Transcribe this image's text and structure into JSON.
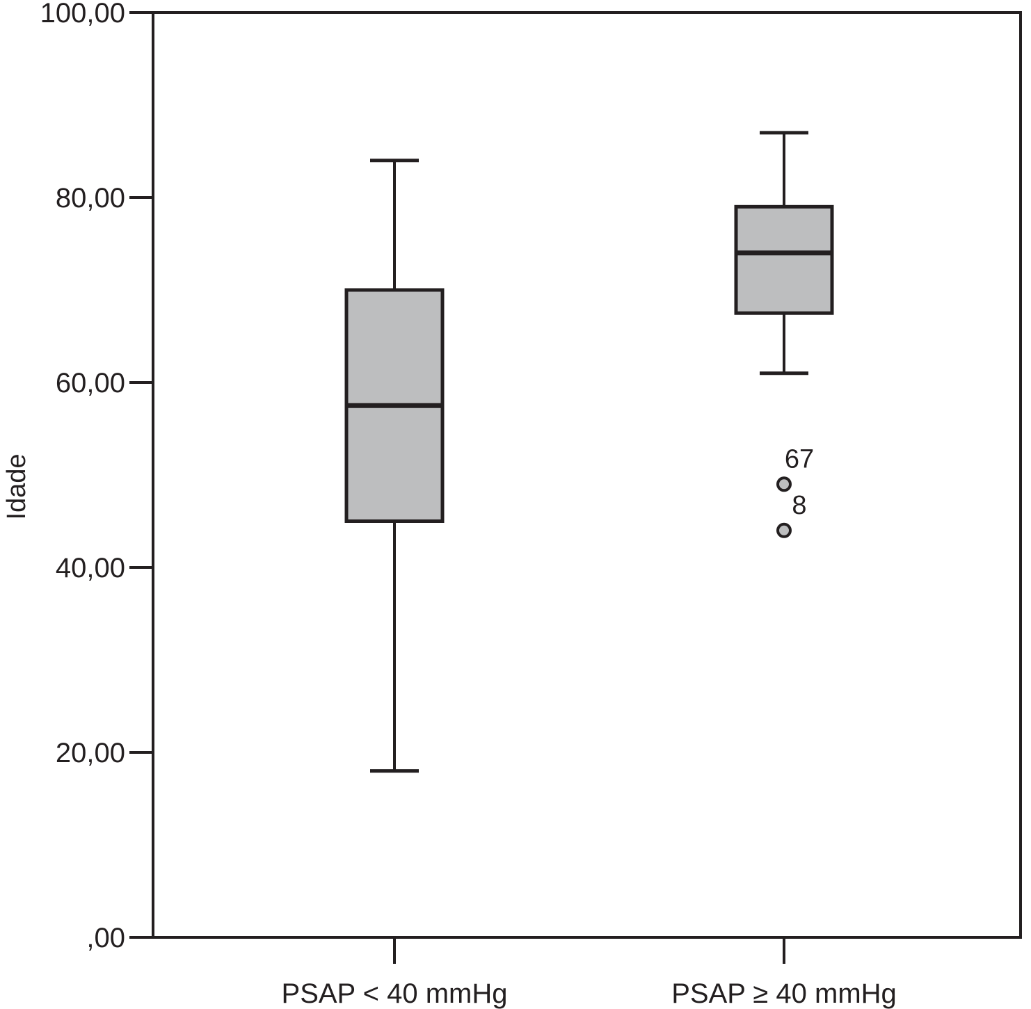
{
  "chart_data": {
    "type": "box",
    "ylabel": "Idade",
    "ylim": [
      0,
      100
    ],
    "y_ticks": [
      {
        "value": 0,
        "label": ",00"
      },
      {
        "value": 20,
        "label": "20,00"
      },
      {
        "value": 40,
        "label": "40,00"
      },
      {
        "value": 60,
        "label": "60,00"
      },
      {
        "value": 80,
        "label": "80,00"
      },
      {
        "value": 100,
        "label": "100,00"
      }
    ],
    "categories": [
      "PSAP < 40 mmHg",
      "PSAP ≥ 40 mmHg"
    ],
    "boxes": [
      {
        "category": "PSAP < 40 mmHg",
        "min": 18,
        "q1": 45,
        "median": 57.5,
        "q3": 70,
        "max": 84,
        "outliers": []
      },
      {
        "category": "PSAP ≥ 40 mmHg",
        "min": 61,
        "q1": 67.5,
        "median": 74,
        "q3": 79,
        "max": 87,
        "outliers": [
          {
            "value": 49,
            "label": "67"
          },
          {
            "value": 44,
            "label": "8"
          }
        ]
      }
    ],
    "grid": false,
    "legend": "none",
    "colors": {
      "box_fill": "#bdbebf",
      "stroke": "#231f20",
      "outlier_fill": "#bdbebf"
    }
  }
}
